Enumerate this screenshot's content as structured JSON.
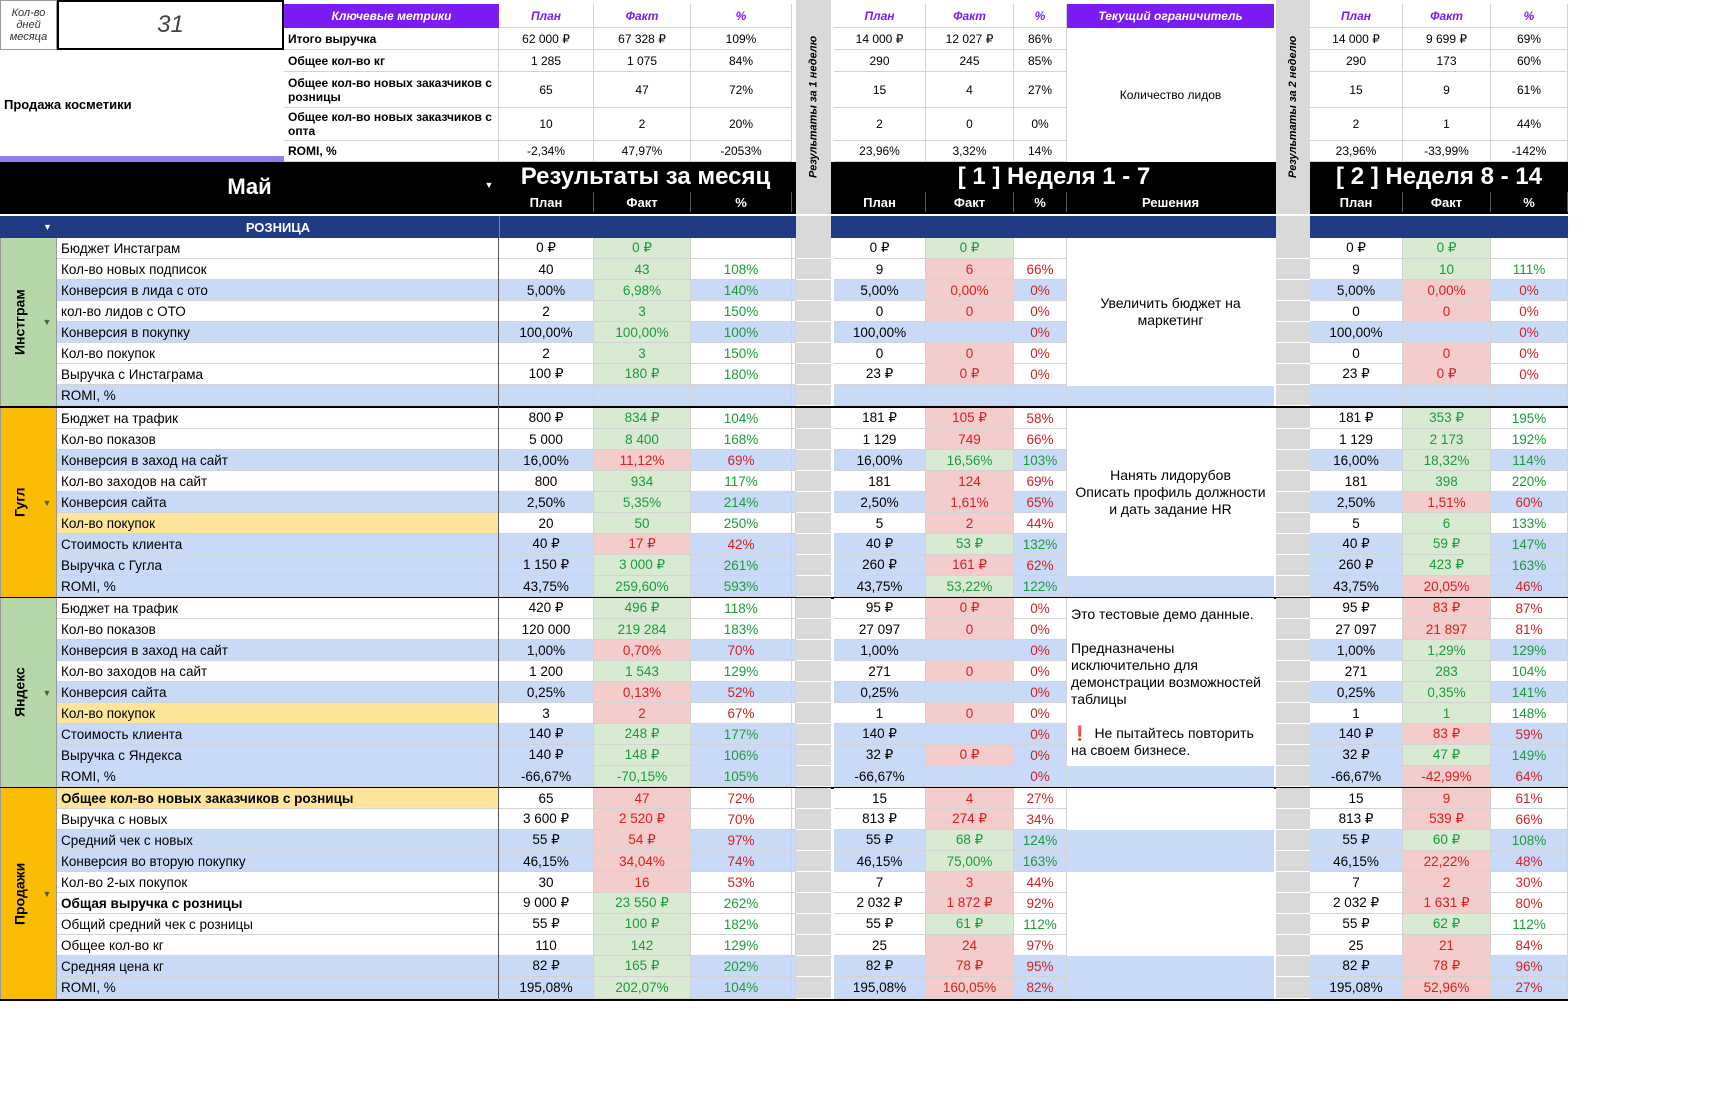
{
  "corner": {
    "days_label": "Кол-во дней месяца",
    "days_value": "31",
    "project_title": "Продажа косметики"
  },
  "key_metrics": {
    "header": "Ключевые метрики",
    "rows": [
      {
        "label": "Итого выручка",
        "m": [
          "62 000 ₽",
          "67 328 ₽",
          "109%"
        ],
        "w1": [
          "14 000 ₽",
          "12 027 ₽",
          "86%"
        ],
        "w2": [
          "14 000 ₽",
          "9 699 ₽",
          "69%"
        ]
      },
      {
        "label": "Общее кол-во кг",
        "m": [
          "1 285",
          "1 075",
          "84%"
        ],
        "w1": [
          "290",
          "245",
          "85%"
        ],
        "w2": [
          "290",
          "173",
          "60%"
        ]
      },
      {
        "label": "Общее кол-во новых заказчиков с розницы",
        "m": [
          "65",
          "47",
          "72%"
        ],
        "w1": [
          "15",
          "4",
          "27%"
        ],
        "w2": [
          "15",
          "9",
          "61%"
        ]
      },
      {
        "label": "Общее кол-во новых заказчиков с опта",
        "m": [
          "10",
          "2",
          "20%"
        ],
        "w1": [
          "2",
          "0",
          "0%"
        ],
        "w2": [
          "2",
          "1",
          "44%"
        ]
      },
      {
        "label": "ROMI, %",
        "m": [
          "-2,34%",
          "47,97%",
          "-2053%"
        ],
        "w1": [
          "23,96%",
          "3,32%",
          "14%"
        ],
        "w2": [
          "23,96%",
          "-33,99%",
          "-142%"
        ]
      }
    ]
  },
  "col_headers": {
    "plan": "План",
    "fact": "Факт",
    "pct": "%"
  },
  "limiter": {
    "header": "Текущий ограничитель",
    "value": "Количество лидов"
  },
  "side_labels": {
    "week1": "Результаты за 1 неделю",
    "week2": "Результаты за 2 неделю"
  },
  "banner": {
    "month": "Май",
    "month_results": "Результаты за месяц",
    "week1_title": "[ 1 ] Неделя 1 - 7",
    "week2_title": "[ 2 ] Неделя 8 - 14",
    "decisions": "Решения"
  },
  "section": {
    "title": "РОЗНИЦА"
  },
  "groups": [
    {
      "name": "Инстграм",
      "rows": [
        {
          "label": "Бюджет Инстаграм",
          "m": [
            "0 ₽",
            "0 ₽",
            ""
          ],
          "w1": [
            "0 ₽",
            "0 ₽",
            ""
          ],
          "w2": [
            "0 ₽",
            "0 ₽",
            ""
          ]
        },
        {
          "label": "Кол-во новых подписок",
          "m": [
            "40",
            "43",
            "108%"
          ],
          "w1": [
            "9",
            "6",
            "66%"
          ],
          "w2": [
            "9",
            "10",
            "111%"
          ]
        },
        {
          "label": "Конверсия в лида с ото",
          "m": [
            "5,00%",
            "6,98%",
            "140%"
          ],
          "w1": [
            "5,00%",
            "0,00%",
            "0%"
          ],
          "w2": [
            "5,00%",
            "0,00%",
            "0%"
          ]
        },
        {
          "label": "кол-во лидов с ОТО",
          "m": [
            "2",
            "3",
            "150%"
          ],
          "w1": [
            "0",
            "0",
            "0%"
          ],
          "w2": [
            "0",
            "0",
            "0%"
          ]
        },
        {
          "label": "Конверсия в покупку",
          "m": [
            "100,00%",
            "100,00%",
            "100%"
          ],
          "w1": [
            "100,00%",
            "",
            "0%"
          ],
          "w2": [
            "100,00%",
            "",
            "0%"
          ]
        },
        {
          "label": "Кол-во покупок",
          "m": [
            "2",
            "3",
            "150%"
          ],
          "w1": [
            "0",
            "0",
            "0%"
          ],
          "w2": [
            "0",
            "0",
            "0%"
          ]
        },
        {
          "label": "Выручка с Инстаграма",
          "m": [
            "100 ₽",
            "180 ₽",
            "180%"
          ],
          "w1": [
            "23 ₽",
            "0 ₽",
            "0%"
          ],
          "w2": [
            "23 ₽",
            "0 ₽",
            "0%"
          ]
        },
        {
          "label": "ROMI, %",
          "m": [
            "",
            "",
            ""
          ],
          "w1": [
            "",
            "",
            ""
          ],
          "w2": [
            "",
            "",
            ""
          ]
        }
      ],
      "decision": "Увеличить бюджет на маркетинг"
    },
    {
      "name": "Гугл",
      "rows": [
        {
          "label": "Бюджет на трафик",
          "m": [
            "800 ₽",
            "834 ₽",
            "104%"
          ],
          "w1": [
            "181 ₽",
            "105 ₽",
            "58%"
          ],
          "w2": [
            "181 ₽",
            "353 ₽",
            "195%"
          ]
        },
        {
          "label": "Кол-во показов",
          "m": [
            "5 000",
            "8 400",
            "168%"
          ],
          "w1": [
            "1 129",
            "749",
            "66%"
          ],
          "w2": [
            "1 129",
            "2 173",
            "192%"
          ]
        },
        {
          "label": "Конверсия в заход на сайт",
          "m": [
            "16,00%",
            "11,12%",
            "69%"
          ],
          "w1": [
            "16,00%",
            "16,56%",
            "103%"
          ],
          "w2": [
            "16,00%",
            "18,32%",
            "114%"
          ]
        },
        {
          "label": "Кол-во заходов на сайт",
          "m": [
            "800",
            "934",
            "117%"
          ],
          "w1": [
            "181",
            "124",
            "69%"
          ],
          "w2": [
            "181",
            "398",
            "220%"
          ]
        },
        {
          "label": "Конверсия сайта",
          "m": [
            "2,50%",
            "5,35%",
            "214%"
          ],
          "w1": [
            "2,50%",
            "1,61%",
            "65%"
          ],
          "w2": [
            "2,50%",
            "1,51%",
            "60%"
          ]
        },
        {
          "label": "Кол-во покупок",
          "m": [
            "20",
            "50",
            "250%"
          ],
          "w1": [
            "5",
            "2",
            "44%"
          ],
          "w2": [
            "5",
            "6",
            "133%"
          ]
        },
        {
          "label": "Стоимость клиента",
          "m": [
            "40 ₽",
            "17 ₽",
            "42%"
          ],
          "w1": [
            "40 ₽",
            "53 ₽",
            "132%"
          ],
          "w2": [
            "40 ₽",
            "59 ₽",
            "147%"
          ]
        },
        {
          "label": "Выручка с Гугла",
          "m": [
            "1 150 ₽",
            "3 000 ₽",
            "261%"
          ],
          "w1": [
            "260 ₽",
            "161 ₽",
            "62%"
          ],
          "w2": [
            "260 ₽",
            "423 ₽",
            "163%"
          ]
        },
        {
          "label": "ROMI, %",
          "m": [
            "43,75%",
            "259,60%",
            "593%"
          ],
          "w1": [
            "43,75%",
            "53,22%",
            "122%"
          ],
          "w2": [
            "43,75%",
            "20,05%",
            "46%"
          ]
        }
      ],
      "decision": "Нанять лидорубов\nОписать профиль должности и дать задание HR"
    },
    {
      "name": "Яндекс",
      "rows": [
        {
          "label": "Бюджет на трафик",
          "m": [
            "420 ₽",
            "496 ₽",
            "118%"
          ],
          "w1": [
            "95 ₽",
            "0 ₽",
            "0%"
          ],
          "w2": [
            "95 ₽",
            "83 ₽",
            "87%"
          ]
        },
        {
          "label": "Кол-во показов",
          "m": [
            "120 000",
            "219 284",
            "183%"
          ],
          "w1": [
            "27 097",
            "0",
            "0%"
          ],
          "w2": [
            "27 097",
            "21 897",
            "81%"
          ]
        },
        {
          "label": "Конверсия в заход на сайт",
          "m": [
            "1,00%",
            "0,70%",
            "70%"
          ],
          "w1": [
            "1,00%",
            "",
            "0%"
          ],
          "w2": [
            "1,00%",
            "1,29%",
            "129%"
          ]
        },
        {
          "label": "Кол-во заходов на сайт",
          "m": [
            "1 200",
            "1 543",
            "129%"
          ],
          "w1": [
            "271",
            "0",
            "0%"
          ],
          "w2": [
            "271",
            "283",
            "104%"
          ]
        },
        {
          "label": "Конверсия сайта",
          "m": [
            "0,25%",
            "0,13%",
            "52%"
          ],
          "w1": [
            "0,25%",
            "",
            "0%"
          ],
          "w2": [
            "0,25%",
            "0,35%",
            "141%"
          ]
        },
        {
          "label": "Кол-во покупок",
          "m": [
            "3",
            "2",
            "67%"
          ],
          "w1": [
            "1",
            "0",
            "0%"
          ],
          "w2": [
            "1",
            "1",
            "148%"
          ]
        },
        {
          "label": "Стоимость клиента",
          "m": [
            "140 ₽",
            "248 ₽",
            "177%"
          ],
          "w1": [
            "140 ₽",
            "",
            "0%"
          ],
          "w2": [
            "140 ₽",
            "83 ₽",
            "59%"
          ]
        },
        {
          "label": "Выручка с Яндекса",
          "m": [
            "140 ₽",
            "148 ₽",
            "106%"
          ],
          "w1": [
            "32 ₽",
            "0 ₽",
            "0%"
          ],
          "w2": [
            "32 ₽",
            "47 ₽",
            "149%"
          ]
        },
        {
          "label": "ROMI, %",
          "m": [
            "-66,67%",
            "-70,15%",
            "105%"
          ],
          "w1": [
            "-66,67%",
            "",
            "0%"
          ],
          "w2": [
            "-66,67%",
            "-42,99%",
            "64%"
          ]
        }
      ],
      "note": {
        "p1": "Это тестовые демо данные.",
        "p2": "Предназначены исключительно для демонстрации возможностей таблицы",
        "p3_icon": "❗",
        "p3": "Не пытайтесь повторить на своем бизнесе."
      }
    },
    {
      "name": "Продажи",
      "rows": [
        {
          "label": "Общее кол-во новых заказчиков с розницы",
          "m": [
            "65",
            "47",
            "72%"
          ],
          "w1": [
            "15",
            "4",
            "27%"
          ],
          "w2": [
            "15",
            "9",
            "61%"
          ]
        },
        {
          "label": "Выручка с новых",
          "m": [
            "3 600 ₽",
            "2 520 ₽",
            "70%"
          ],
          "w1": [
            "813 ₽",
            "274 ₽",
            "34%"
          ],
          "w2": [
            "813 ₽",
            "539 ₽",
            "66%"
          ]
        },
        {
          "label": "Средний чек с новых",
          "m": [
            "55 ₽",
            "54 ₽",
            "97%"
          ],
          "w1": [
            "55 ₽",
            "68 ₽",
            "124%"
          ],
          "w2": [
            "55 ₽",
            "60 ₽",
            "108%"
          ]
        },
        {
          "label": "Конверсия во вторую покупку",
          "m": [
            "46,15%",
            "34,04%",
            "74%"
          ],
          "w1": [
            "46,15%",
            "75,00%",
            "163%"
          ],
          "w2": [
            "46,15%",
            "22,22%",
            "48%"
          ]
        },
        {
          "label": "Кол-во 2-ых покупок",
          "m": [
            "30",
            "16",
            "53%"
          ],
          "w1": [
            "7",
            "3",
            "44%"
          ],
          "w2": [
            "7",
            "2",
            "30%"
          ]
        },
        {
          "label": "Общая выручка с розницы",
          "m": [
            "9 000 ₽",
            "23 550 ₽",
            "262%"
          ],
          "w1": [
            "2 032 ₽",
            "1 872 ₽",
            "92%"
          ],
          "w2": [
            "2 032 ₽",
            "1 631 ₽",
            "80%"
          ]
        },
        {
          "label": "Общий средний чек с розницы",
          "m": [
            "55 ₽",
            "100 ₽",
            "182%"
          ],
          "w1": [
            "55 ₽",
            "61 ₽",
            "112%"
          ],
          "w2": [
            "55 ₽",
            "62 ₽",
            "112%"
          ]
        },
        {
          "label": "Общее кол-во кг",
          "m": [
            "110",
            "142",
            "129%"
          ],
          "w1": [
            "25",
            "24",
            "97%"
          ],
          "w2": [
            "25",
            "21",
            "84%"
          ]
        },
        {
          "label": "Средняя цена кг",
          "m": [
            "82 ₽",
            "165 ₽",
            "202%"
          ],
          "w1": [
            "82 ₽",
            "78 ₽",
            "95%"
          ],
          "w2": [
            "82 ₽",
            "78 ₽",
            "96%"
          ]
        },
        {
          "label": "ROMI, %",
          "m": [
            "195,08%",
            "202,07%",
            "104%"
          ],
          "w1": [
            "195,08%",
            "160,05%",
            "82%"
          ],
          "w2": [
            "195,08%",
            "52,96%",
            "27%"
          ]
        }
      ]
    }
  ],
  "colors": {
    "purple": "#7c1cf5",
    "navy": "#1e3b83",
    "row_blue": "#c9daf8",
    "fact_green": "#d9ead3",
    "fact_red": "#f4cccc",
    "highlight_yellow": "#ffe599",
    "group_green": "#b6d7a8",
    "group_orange": "#fbbc04",
    "gutter_gray": "#d9d9d9"
  }
}
